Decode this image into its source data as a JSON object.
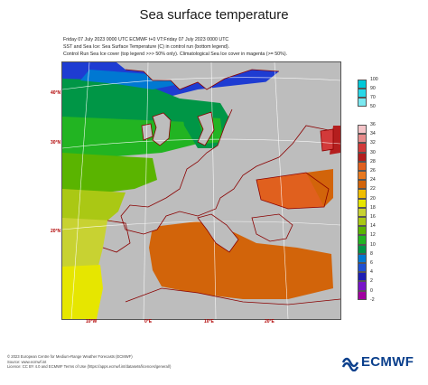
{
  "title": "Sea surface temperature",
  "info_lines": [
    "Friday 07 July 2023 0000 UTC   ECMWF  t+0  VT:Friday 07 July 2023 0000 UTC",
    "SST and Sea Ice: Sea Surface Temperature (C) in control run (bottom legend).",
    "Control Run Sea Ice cover (top legend >>> 50% only). Climatological Sea Ice cover in magenta (>= 50%)."
  ],
  "latitude_labels": [
    "40°N",
    "30°N",
    "20°N"
  ],
  "longitude_labels": [
    "10°W",
    "0°E",
    "10°E",
    "20°E"
  ],
  "ice_legend": {
    "ticks": [
      "100",
      "90",
      "70",
      "50"
    ],
    "colors": [
      "#00c8d8",
      "#28d8e8",
      "#7ae8f0"
    ]
  },
  "sst_legend": {
    "ticks": [
      "36",
      "34",
      "32",
      "30",
      "28",
      "26",
      "24",
      "22",
      "20",
      "18",
      "16",
      "14",
      "12",
      "10",
      "8",
      "6",
      "4",
      "2",
      "0",
      "-2"
    ],
    "colors": [
      "#f4c4c8",
      "#e68a8a",
      "#d23a3a",
      "#b41e1e",
      "#e0601e",
      "#e8781e",
      "#d2640a",
      "#f0be00",
      "#e6e600",
      "#c8d232",
      "#aac814",
      "#5ab400",
      "#22b422",
      "#009646",
      "#0078d2",
      "#1e50d2",
      "#1e1eb4",
      "#7814c8",
      "#a000a0"
    ]
  },
  "footer_lines": [
    "© 2023 European Centre for Medium-Range Weather Forecasts (ECMWF)",
    "Source: www.ecmwf.int",
    "Licence: CC BY 4.0 and ECMWF Terms of Use (https://apps.ecmwf.int/datasets/licences/general/)"
  ],
  "logo_text": "ECMWF"
}
